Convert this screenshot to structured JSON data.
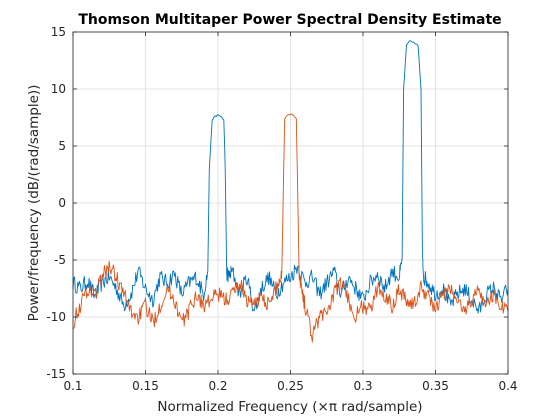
{
  "chart_data": {
    "type": "line",
    "title": "Thomson Multitaper Power Spectral Density Estimate",
    "xlabel": "Normalized Frequency  (×π rad/sample)",
    "ylabel": "Power/frequency (dB/(rad/sample))",
    "xlim": [
      0.1,
      0.4
    ],
    "ylim": [
      -15,
      15
    ],
    "xticks": [
      0.1,
      0.15,
      0.2,
      0.25,
      0.3,
      0.35,
      0.4
    ],
    "xtick_labels": [
      "0.1",
      "0.15",
      "0.2",
      "0.25",
      "0.3",
      "0.35",
      "0.4"
    ],
    "yticks": [
      -15,
      -10,
      -5,
      0,
      5,
      10,
      15
    ],
    "ytick_labels": [
      "-15",
      "-10",
      "-5",
      "0",
      "5",
      "10",
      "15"
    ],
    "grid": true,
    "legend": "none",
    "series": [
      {
        "color": "#0072BD",
        "x": [
          0.1,
          0.105,
          0.11,
          0.115,
          0.12,
          0.125,
          0.13,
          0.135,
          0.14,
          0.145,
          0.15,
          0.155,
          0.16,
          0.165,
          0.17,
          0.175,
          0.18,
          0.185,
          0.19,
          0.193,
          0.194,
          0.196,
          0.198,
          0.2,
          0.202,
          0.204,
          0.205,
          0.206,
          0.207,
          0.21,
          0.215,
          0.22,
          0.225,
          0.23,
          0.235,
          0.24,
          0.245,
          0.25,
          0.255,
          0.26,
          0.265,
          0.27,
          0.275,
          0.28,
          0.285,
          0.29,
          0.295,
          0.3,
          0.305,
          0.31,
          0.315,
          0.32,
          0.325,
          0.327,
          0.328,
          0.33,
          0.332,
          0.335,
          0.338,
          0.34,
          0.341,
          0.342,
          0.345,
          0.35,
          0.355,
          0.36,
          0.365,
          0.37,
          0.375,
          0.38,
          0.385,
          0.39,
          0.395,
          0.4
        ],
        "y": [
          -7.0,
          -7.5,
          -6.8,
          -8.2,
          -7.0,
          -6.5,
          -7.5,
          -9.0,
          -8.0,
          -6.0,
          -7.5,
          -8.5,
          -6.5,
          -7.0,
          -6.2,
          -8.0,
          -7.0,
          -6.5,
          -8.0,
          -6.0,
          3.0,
          7.3,
          7.6,
          7.7,
          7.6,
          7.3,
          3.0,
          -6.0,
          -6.5,
          -6.0,
          -8.0,
          -6.5,
          -9.5,
          -7.5,
          -6.5,
          -8.0,
          -7.0,
          -6.5,
          -5.5,
          -7.0,
          -6.5,
          -8.0,
          -7.0,
          -6.0,
          -8.0,
          -6.5,
          -7.5,
          -8.5,
          -7.0,
          -6.2,
          -7.5,
          -6.0,
          -6.5,
          -5.0,
          10.0,
          13.8,
          14.2,
          14.1,
          13.8,
          10.0,
          -5.0,
          -6.5,
          -7.0,
          -8.0,
          -7.5,
          -9.0,
          -8.0,
          -7.5,
          -8.5,
          -9.5,
          -8.0,
          -7.5,
          -8.5,
          -7.5
        ]
      },
      {
        "color": "#D95319",
        "x": [
          0.1,
          0.105,
          0.11,
          0.115,
          0.12,
          0.125,
          0.13,
          0.135,
          0.14,
          0.145,
          0.15,
          0.155,
          0.16,
          0.165,
          0.17,
          0.175,
          0.18,
          0.185,
          0.19,
          0.195,
          0.2,
          0.205,
          0.21,
          0.215,
          0.22,
          0.225,
          0.23,
          0.235,
          0.24,
          0.242,
          0.244,
          0.246,
          0.248,
          0.25,
          0.252,
          0.254,
          0.256,
          0.257,
          0.26,
          0.265,
          0.27,
          0.275,
          0.28,
          0.285,
          0.29,
          0.295,
          0.3,
          0.305,
          0.31,
          0.315,
          0.32,
          0.325,
          0.33,
          0.335,
          0.34,
          0.345,
          0.35,
          0.355,
          0.36,
          0.365,
          0.37,
          0.375,
          0.38,
          0.385,
          0.39,
          0.395,
          0.4
        ],
        "y": [
          -10.5,
          -9.0,
          -7.5,
          -8.0,
          -6.5,
          -5.5,
          -6.5,
          -8.0,
          -9.5,
          -10.0,
          -9.0,
          -10.5,
          -9.0,
          -7.5,
          -8.5,
          -10.5,
          -9.5,
          -8.0,
          -9.0,
          -8.5,
          -8.0,
          -8.5,
          -8.0,
          -7.0,
          -8.5,
          -9.0,
          -8.0,
          -9.0,
          -7.5,
          -7.0,
          -6.0,
          7.4,
          7.7,
          7.8,
          7.7,
          7.4,
          -6.0,
          -7.0,
          -9.0,
          -11.5,
          -10.0,
          -9.5,
          -8.0,
          -7.0,
          -8.5,
          -10.0,
          -9.0,
          -9.5,
          -7.5,
          -8.0,
          -9.0,
          -7.5,
          -8.5,
          -9.0,
          -7.5,
          -8.0,
          -9.5,
          -8.0,
          -7.5,
          -8.5,
          -9.5,
          -8.5,
          -7.5,
          -9.0,
          -8.0,
          -9.0,
          -9.5
        ]
      }
    ]
  }
}
